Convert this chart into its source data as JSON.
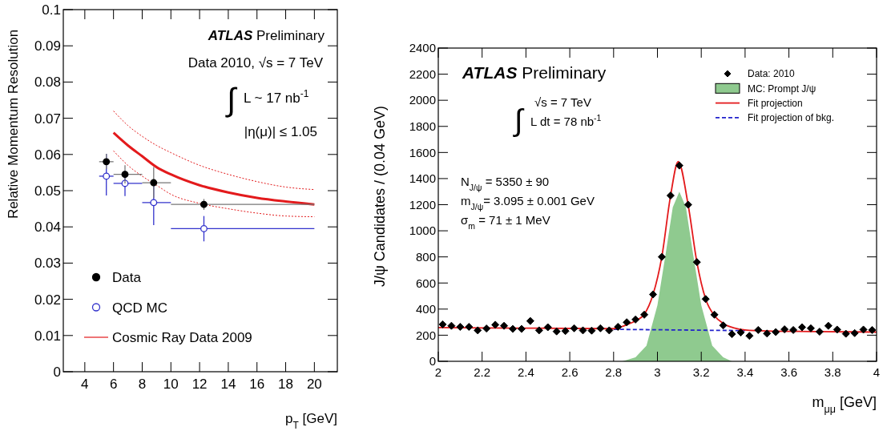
{
  "chart_data": [
    {
      "type": "scatter",
      "xlabel": "p$_{T}$ [GeV]",
      "ylabel": "Relative Momentum Resolution",
      "xlim": [
        2.5,
        21.6
      ],
      "xticks": [
        4,
        6,
        8,
        10,
        12,
        14,
        16,
        18,
        20
      ],
      "ylim": [
        0,
        0.1
      ],
      "yticks": [
        0,
        0.01,
        0.02,
        0.03,
        0.04,
        0.05,
        0.06,
        0.07,
        0.08,
        0.09,
        0.1
      ],
      "legend": "bottom left",
      "annotations": [
        "ATLAS Preliminary",
        "Data 2010, √s = 7 TeV",
        "∫",
        "L ~ 17 nb$^{-1}$",
        "|η(μ)| ≤ 1.05"
      ],
      "series": [
        {
          "name": "Data",
          "marker": "circle",
          "color": "#000000",
          "x": [
            5.5,
            6.8,
            8.8,
            12.3
          ],
          "values": [
            0.058,
            0.0545,
            0.0522,
            0.0462
          ],
          "errors": [
            [
              0.056,
              0.0602
            ],
            [
              0.052,
              0.057
            ],
            [
              0.048,
              0.0565
            ],
            [
              0.0447,
              0.0477
            ]
          ],
          "xerrors": [
            [
              5,
              6
            ],
            [
              6,
              8
            ],
            [
              8,
              10
            ],
            [
              10,
              20
            ]
          ]
        },
        {
          "name": "QCD MC",
          "marker": "circle",
          "color": "#3333cc",
          "x": [
            5.5,
            6.8,
            8.8,
            12.3
          ],
          "values": [
            0.054,
            0.052,
            0.0467,
            0.0395
          ],
          "errors": [
            [
              0.0487,
              0.0602
            ],
            [
              0.0485,
              0.0555
            ],
            [
              0.0405,
              0.0525
            ],
            [
              0.036,
              0.043
            ]
          ],
          "xerrors": [
            [
              5,
              6
            ],
            [
              6,
              8
            ],
            [
              8,
              10
            ],
            [
              10,
              20
            ]
          ]
        },
        {
          "name": "Cosmic Ray Data 2009",
          "type": "line",
          "color": "#e31a1c",
          "x": [
            6,
            7,
            8,
            9,
            10,
            12,
            14,
            16,
            18,
            20
          ],
          "values": [
            0.066,
            0.0625,
            0.0595,
            0.0565,
            0.0545,
            0.0515,
            0.0495,
            0.048,
            0.047,
            0.0462
          ]
        },
        {
          "type": "line",
          "line_style": "dotted",
          "color": "#e31a1c",
          "x": [
            6,
            7,
            8,
            9,
            10,
            12,
            14,
            16,
            18,
            20
          ],
          "values": [
            0.072,
            0.068,
            0.065,
            0.0625,
            0.0605,
            0.057,
            0.0545,
            0.0525,
            0.051,
            0.0503
          ]
        },
        {
          "type": "line",
          "line_style": "dotted",
          "color": "#e31a1c",
          "x": [
            6,
            7,
            8,
            9,
            10,
            12,
            14,
            16,
            18,
            20
          ],
          "values": [
            0.061,
            0.057,
            0.054,
            0.0515,
            0.049,
            0.0465,
            0.045,
            0.0438,
            0.043,
            0.0428
          ]
        }
      ]
    },
    {
      "type": "scatter",
      "xlabel": "m$_{μμ}$ [GeV]",
      "ylabel": "J/ψ Candidates / (0.04 GeV)",
      "xlim": [
        2,
        4
      ],
      "xticks": [
        2,
        2.2,
        2.4,
        2.6,
        2.8,
        3,
        3.2,
        3.4,
        3.6,
        3.8,
        4
      ],
      "ylim": [
        0,
        2400
      ],
      "yticks": [
        0,
        200,
        400,
        600,
        800,
        1000,
        1200,
        1400,
        1600,
        1800,
        2000,
        2200,
        2400
      ],
      "legend": "top right",
      "annotations": [
        "ATLAS Preliminary",
        "∫",
        "√s = 7 TeV",
        "L dt = 78 nb$^{-1}$",
        "N$_{J/ψ}$ = 5350 ± 90",
        "m$_{J/ψ}$= 3.095 ± 0.001 GeV",
        "σ$_{m}$   = 71 ±  1 MeV"
      ],
      "series": [
        {
          "name": "Data: 2010",
          "marker": "diamond",
          "color": "#000000",
          "x": [
            2.02,
            2.06,
            2.1,
            2.14,
            2.18,
            2.22,
            2.26,
            2.3,
            2.34,
            2.38,
            2.42,
            2.46,
            2.5,
            2.54,
            2.58,
            2.62,
            2.66,
            2.7,
            2.74,
            2.78,
            2.82,
            2.86,
            2.9,
            2.94,
            2.98,
            3.02,
            3.06,
            3.1,
            3.14,
            3.18,
            3.22,
            3.26,
            3.3,
            3.34,
            3.38,
            3.42,
            3.46,
            3.5,
            3.54,
            3.58,
            3.62,
            3.66,
            3.7,
            3.74,
            3.78,
            3.82,
            3.86,
            3.9,
            3.94,
            3.98
          ],
          "values": [
            283,
            272,
            264,
            264,
            237,
            251,
            280,
            272,
            248,
            248,
            309,
            237,
            261,
            229,
            232,
            253,
            237,
            235,
            253,
            237,
            264,
            299,
            320,
            357,
            512,
            800,
            1270,
            1500,
            1200,
            760,
            477,
            357,
            275,
            208,
            221,
            195,
            240,
            213,
            224,
            245,
            240,
            261,
            253,
            227,
            272,
            243,
            211,
            216,
            243,
            240
          ]
        },
        {
          "name": "MC: Prompt J/ψ",
          "type": "area",
          "color": "#8fca8f",
          "x": [
            2.84,
            2.9,
            2.95,
            3.0,
            3.04,
            3.07,
            3.1,
            3.13,
            3.16,
            3.2,
            3.25,
            3.3,
            3.34
          ],
          "values": [
            0,
            30,
            120,
            430,
            850,
            1180,
            1300,
            1180,
            850,
            430,
            120,
            30,
            0
          ]
        },
        {
          "name": "Fit projection",
          "type": "line",
          "color": "#e31a1c",
          "x": [
            2,
            2.4,
            2.8,
            2.86,
            2.9,
            2.94,
            2.98,
            3.02,
            3.06,
            3.095,
            3.14,
            3.18,
            3.22,
            3.26,
            3.3,
            3.35,
            3.4,
            3.5,
            3.7,
            4
          ],
          "values": [
            259,
            254,
            250,
            280,
            310,
            360,
            512,
            800,
            1270,
            1530,
            1200,
            760,
            477,
            350,
            290,
            255,
            240,
            232,
            228,
            224
          ]
        },
        {
          "name": "Fit projection of bkg.",
          "type": "line",
          "line_style": "dashed",
          "color": "#2222cc",
          "x": [
            2.8,
            3.4
          ],
          "values": [
            245,
            235
          ]
        }
      ]
    }
  ]
}
